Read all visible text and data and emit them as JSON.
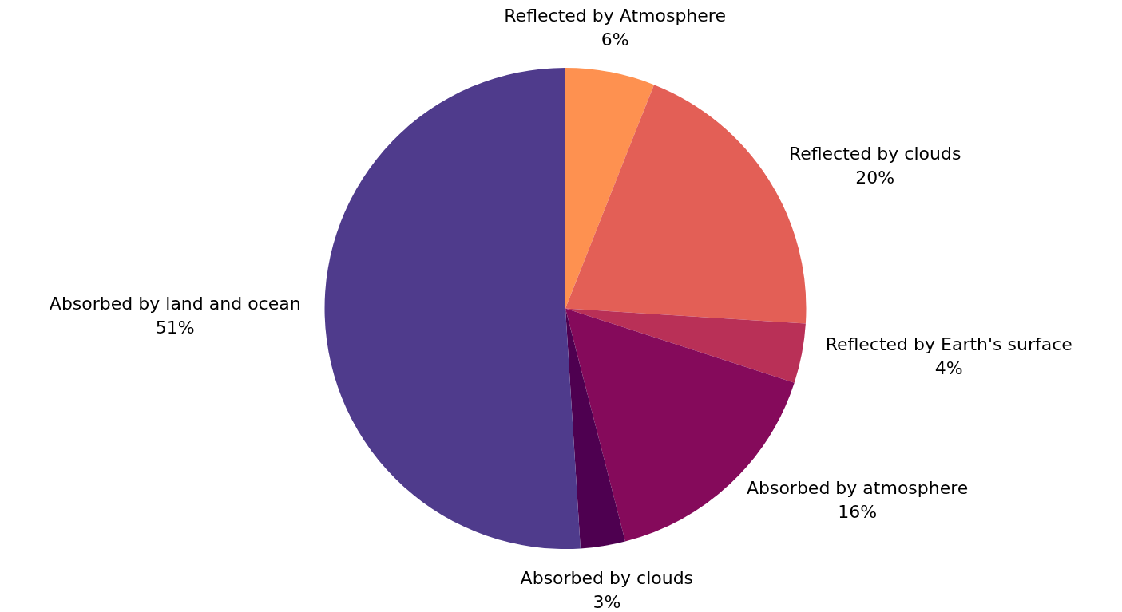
{
  "chart_data": {
    "type": "pie",
    "categories": [
      "Reflected by Atmosphere",
      "Reflected by clouds",
      "Reflected by Earth's surface",
      "Absorbed by atmosphere",
      "Absorbed by clouds",
      "Absorbed by land and ocean"
    ],
    "values": [
      6,
      20,
      4,
      16,
      3,
      51
    ],
    "value_labels": [
      "6%",
      "20%",
      "4%",
      "16%",
      "3%",
      "51%"
    ],
    "colors": [
      "#fe9150",
      "#e35f56",
      "#b93057",
      "#850a5b",
      "#4e0050",
      "#4f3b8c"
    ],
    "legend": false
  }
}
